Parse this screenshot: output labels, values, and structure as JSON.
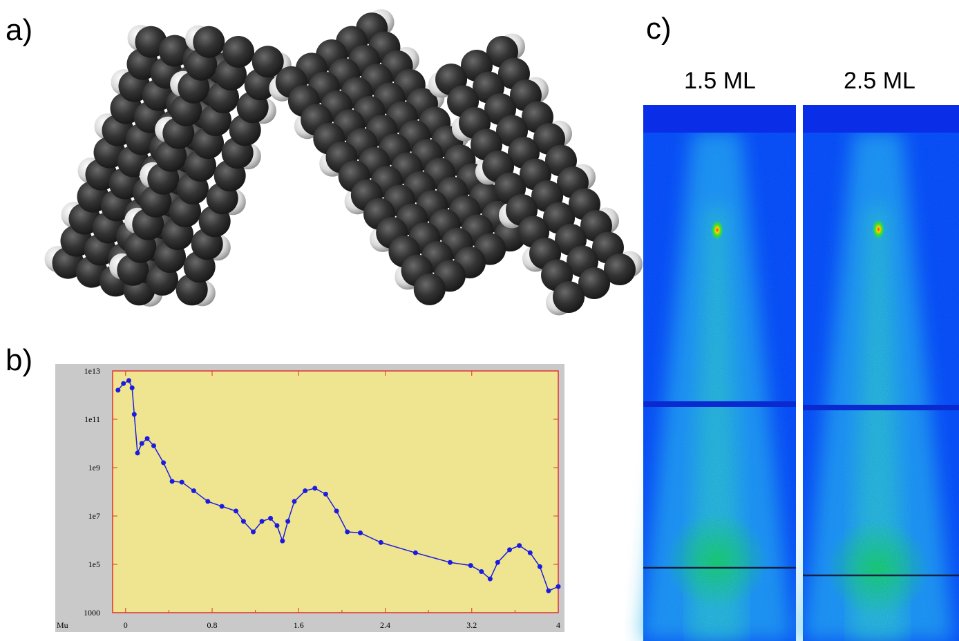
{
  "panels": {
    "a": "a)",
    "b": "b)",
    "c": "c)"
  },
  "chart_data": {
    "type": "scatter",
    "yscale": "log",
    "x_label": "Mu",
    "color": "#1c1ce0",
    "xlim": [
      -0.12,
      4.0
    ],
    "xticks": [
      0,
      0.8,
      1.6,
      2.4,
      3.2,
      4
    ],
    "ylim": [
      1000,
      10000000000000
    ],
    "yticks": [
      1000,
      {
        "value": 100000,
        "label": "1e5"
      },
      {
        "value": 10000000,
        "label": "1e7"
      },
      {
        "value": 1000000000,
        "label": "1e9"
      },
      {
        "value": 100000000000,
        "label": "1e11"
      },
      {
        "value": 10000000000000,
        "label": "1e13"
      }
    ],
    "x": [
      -0.07,
      -0.02,
      0.03,
      0.06,
      0.08,
      0.11,
      0.15,
      0.2,
      0.26,
      0.35,
      0.43,
      0.52,
      0.63,
      0.76,
      0.89,
      1.02,
      1.09,
      1.18,
      1.26,
      1.34,
      1.4,
      1.45,
      1.5,
      1.56,
      1.66,
      1.75,
      1.85,
      1.95,
      2.05,
      2.17,
      2.36,
      2.68,
      3.0,
      3.19,
      3.29,
      3.37,
      3.44,
      3.55,
      3.64,
      3.74,
      3.83,
      3.91,
      4.0
    ],
    "values": [
      1600000000000,
      3000000000000,
      4000000000000,
      2000000000000,
      160000000000,
      4000000000,
      10000000000,
      16000000000,
      8000000000,
      1600000000,
      270000000,
      250000000,
      110000000,
      40000000,
      25000000,
      16000000,
      6000000,
      2200000,
      6000000,
      8000000,
      4000000,
      930000,
      6000000,
      40000000,
      110000000,
      140000000,
      80000000,
      16000000,
      2200000,
      2000000,
      800000,
      300000,
      120000,
      90000,
      50000,
      25000,
      120000,
      400000,
      600000,
      300000,
      80000,
      8000,
      12000
    ]
  },
  "rheed": {
    "labels": [
      "1.5 ML",
      "2.5 ML"
    ]
  }
}
